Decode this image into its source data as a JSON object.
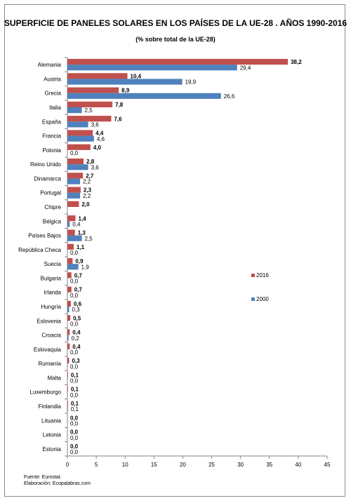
{
  "chart_data": {
    "type": "bar",
    "orientation": "horizontal",
    "title": "SUPERFICIE DE PANELES SOLARES EN LOS PAÍSES DE LA UE-28 . AÑOS 1990-2016",
    "subtitle": "(% sobre total de la UE-28)",
    "categories": [
      "Alemania",
      "Austria",
      "Grecia",
      "Italia",
      "España",
      "Francia",
      "Polonia",
      "Reino Unido",
      "Dinamarca",
      "Portugal",
      "Chipre",
      "Bélgica",
      "Países Bajos",
      "República Checa",
      "Suecia",
      "Bulgaria",
      "Irlanda",
      "Hungría",
      "Eslovenia",
      "Croacia",
      "Eslovaquia",
      "Rumanía",
      "Malta",
      "Luxemburgo",
      "Finlandia",
      "Lituania",
      "Letonia",
      "Estonia"
    ],
    "series": [
      {
        "name": "2016",
        "color": "#c0504d",
        "values": [
          38.2,
          10.4,
          8.9,
          7.8,
          7.6,
          4.4,
          4.0,
          2.8,
          2.7,
          2.3,
          2.0,
          1.4,
          1.3,
          1.1,
          0.9,
          0.7,
          0.7,
          0.6,
          0.5,
          0.4,
          0.4,
          0.3,
          0.1,
          0.1,
          0.1,
          0.0,
          0.0,
          0.0
        ],
        "labels": [
          "38,2",
          "10,4",
          "8,9",
          "7,8",
          "7,6",
          "4,4",
          "4,0",
          "2,8",
          "2,7",
          "2,3",
          "2,0",
          "1,4",
          "1,3",
          "1,1",
          "0,9",
          "0,7",
          "0,7",
          "0,6",
          "0,5",
          "0,4",
          "0,4",
          "0,3",
          "0,1",
          "0,1",
          "0,1",
          "0,0",
          "0,0",
          "0,0"
        ]
      },
      {
        "name": "2000",
        "color": "#4f81bd",
        "values": [
          29.4,
          19.9,
          26.6,
          2.5,
          3.6,
          4.6,
          0.0,
          3.6,
          2.2,
          2.2,
          null,
          0.4,
          2.5,
          0.0,
          1.9,
          0.0,
          0.0,
          0.3,
          0.0,
          0.2,
          0.0,
          0.0,
          0.0,
          0.0,
          0.1,
          0.0,
          0.0,
          0.0
        ],
        "labels": [
          "29,4",
          "19,9",
          "26,6",
          "2,5",
          "3,6",
          "4,6",
          "0,0",
          "3,6",
          "2,2",
          "2,2",
          "",
          "0,4",
          "2,5",
          "0,0",
          "1,9",
          "0,0",
          "0,0",
          "0,3",
          "0,0",
          "0,2",
          "0,0",
          "0,0",
          "0,0",
          "0,0",
          "0,1",
          "0,0",
          "0,0",
          "0,0"
        ]
      }
    ],
    "xlim": [
      0,
      45
    ],
    "xticks": [
      0,
      5,
      10,
      15,
      20,
      25,
      30,
      35,
      40,
      45
    ],
    "grid": false,
    "legend_position": "right"
  },
  "footer": {
    "source": "Fuente: Eurostat.",
    "credit": "Elaboración: Ecopalabras.com"
  }
}
